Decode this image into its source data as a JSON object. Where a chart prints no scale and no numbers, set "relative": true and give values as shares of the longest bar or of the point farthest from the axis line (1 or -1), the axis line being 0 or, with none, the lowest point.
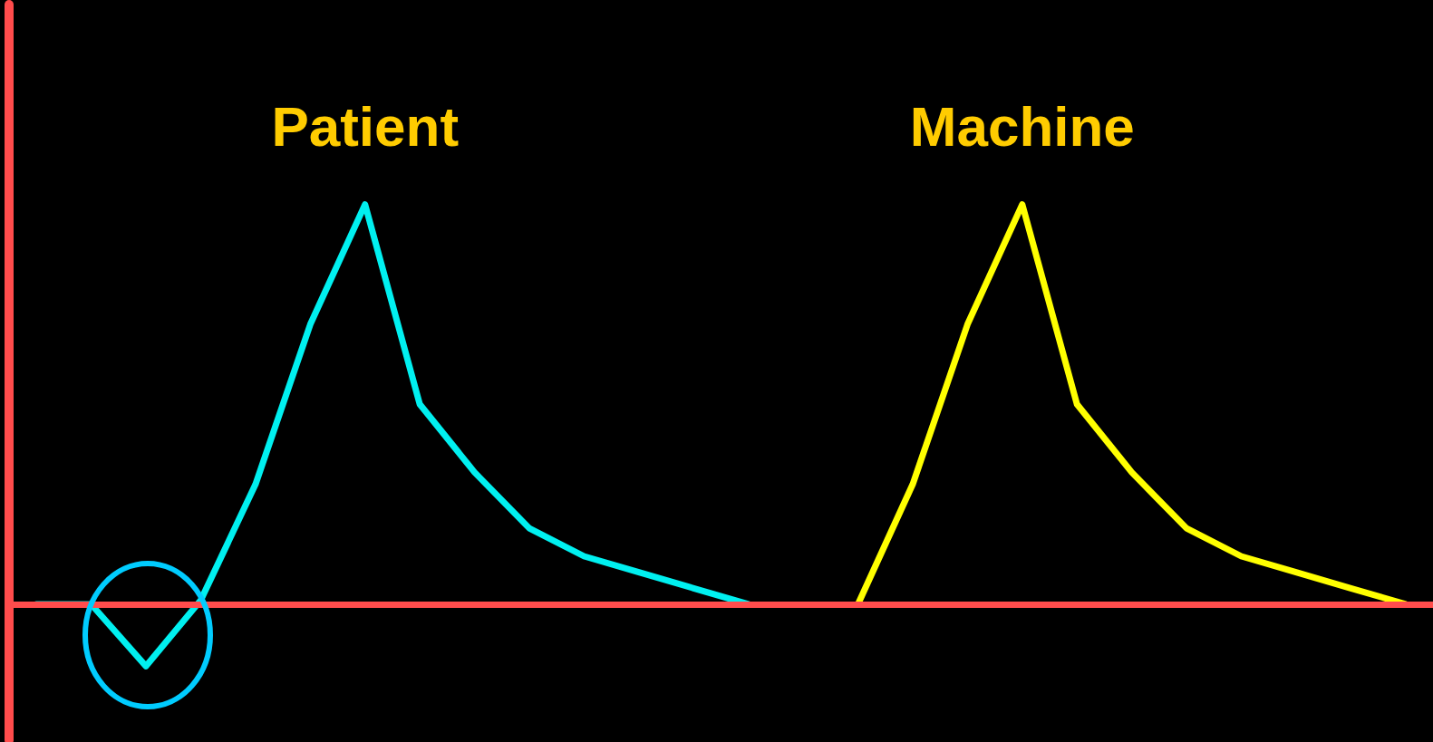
{
  "chart_data": {
    "type": "line",
    "relative": true,
    "tick_labels": false,
    "grid": false,
    "legend": false,
    "marker": "none",
    "line_style": "solid",
    "ref_lines": [
      {
        "axis": "y",
        "value": 0,
        "color": "#ff4c4c"
      }
    ],
    "categories": [
      null,
      null,
      null,
      null,
      null,
      null,
      null,
      null,
      null,
      null,
      null,
      null,
      null,
      null,
      null,
      null,
      null,
      null,
      null,
      null,
      null,
      null,
      null,
      null,
      null,
      null
    ],
    "series": [
      {
        "name": "Patient",
        "color": "#00f0f0",
        "values": [
          0,
          0,
          -0.155,
          0.01,
          0.3,
          0.7,
          1,
          0.5,
          0.33,
          0.19,
          0.12,
          0.08,
          0.04,
          0,
          null,
          null,
          null,
          null,
          null,
          null,
          null,
          null,
          null,
          null,
          null,
          null
        ]
      },
      {
        "name": "Machine",
        "color": "#ffff00",
        "values": [
          null,
          null,
          null,
          null,
          null,
          null,
          null,
          null,
          null,
          null,
          null,
          null,
          null,
          null,
          null,
          0,
          0.3,
          0.7,
          1,
          0.5,
          0.33,
          0.19,
          0.12,
          0.08,
          0.04,
          0
        ]
      }
    ]
  }
}
